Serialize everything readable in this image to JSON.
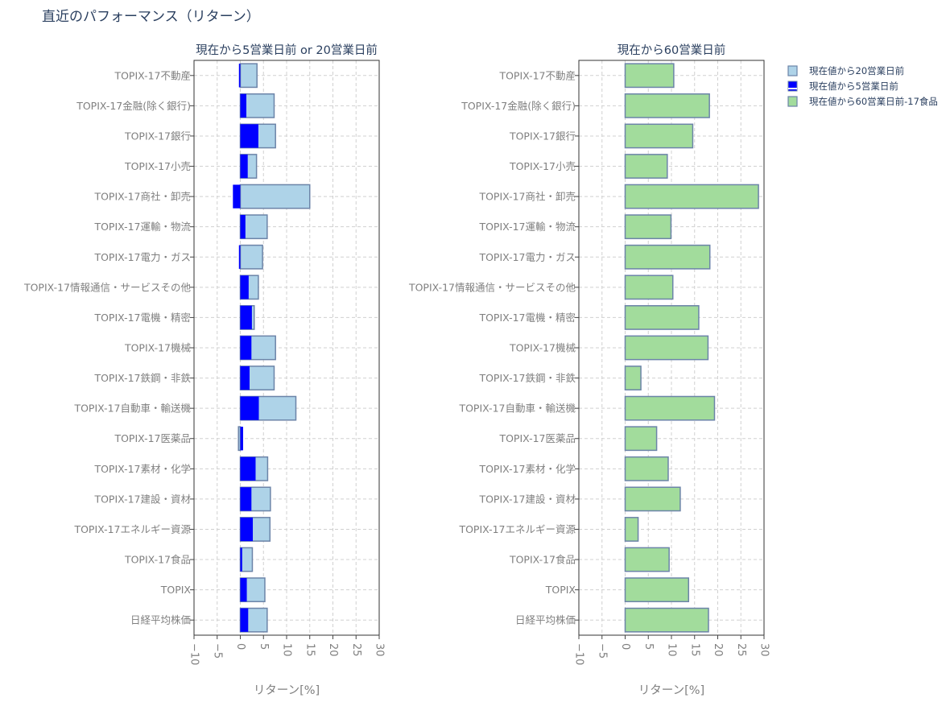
{
  "page": {
    "title": "直近のパフォーマンス（リターン）"
  },
  "colors": {
    "bar20": "#aed3e8",
    "bar5": "#0000ff",
    "bar60": "#a2dc9c",
    "barOutline": "#6c84a8",
    "grid": "#d0d0d0",
    "tick": "#7f7f7f",
    "title": "#2a3f5f"
  },
  "chart_data": [
    {
      "type": "bar",
      "orientation": "horizontal",
      "title": "現在から5営業日前 or 20営業日前",
      "xlabel": "リターン[%]",
      "xlim": [
        -10,
        30
      ],
      "xticks": [
        -10,
        -5,
        0,
        5,
        10,
        15,
        20,
        25,
        30
      ],
      "xtick_labels": [
        "−10",
        "−5",
        "0",
        "5",
        "10",
        "15",
        "20",
        "25",
        "30"
      ],
      "grid": true,
      "categories": [
        "TOPIX-17不動産",
        "TOPIX-17金融(除く銀行)",
        "TOPIX-17銀行",
        "TOPIX-17小売",
        "TOPIX-17商社・卸売",
        "TOPIX-17運輸・物流",
        "TOPIX-17電力・ガス",
        "TOPIX-17情報通信・サービスその他",
        "TOPIX-17電機・精密",
        "TOPIX-17機械",
        "TOPIX-17鉄鋼・非鉄",
        "TOPIX-17自動車・輸送機",
        "TOPIX-17医薬品",
        "TOPIX-17素材・化学",
        "TOPIX-17建設・資材",
        "TOPIX-17エネルギー資源",
        "TOPIX-17食品",
        "TOPIX",
        "日経平均株価"
      ],
      "series": [
        {
          "name": "現在値から20営業日前",
          "values": [
            3.6,
            7.3,
            7.6,
            3.5,
            15.0,
            5.8,
            4.8,
            3.9,
            3.0,
            7.6,
            7.3,
            12.0,
            -0.4,
            5.9,
            6.5,
            6.4,
            2.6,
            5.3,
            5.8
          ]
        },
        {
          "name": "現在値から5営業日前",
          "values": [
            -0.3,
            1.3,
            3.9,
            1.6,
            -1.6,
            1.1,
            -0.3,
            1.8,
            2.5,
            2.4,
            2.0,
            4.0,
            0.6,
            3.3,
            2.4,
            2.7,
            0.4,
            1.4,
            1.7
          ]
        }
      ]
    },
    {
      "type": "bar",
      "orientation": "horizontal",
      "title": "現在から60営業日前",
      "xlabel": "リターン[%]",
      "xlim": [
        -10,
        30
      ],
      "xticks": [
        -10,
        -5,
        0,
        5,
        10,
        15,
        20,
        25,
        30
      ],
      "xtick_labels": [
        "−10",
        "−5",
        "0",
        "5",
        "10",
        "15",
        "20",
        "25",
        "30"
      ],
      "grid": true,
      "categories": [
        "TOPIX-17不動産",
        "TOPIX-17金融(除く銀行)",
        "TOPIX-17銀行",
        "TOPIX-17小売",
        "TOPIX-17商社・卸売",
        "TOPIX-17運輸・物流",
        "TOPIX-17電力・ガス",
        "TOPIX-17情報通信・サービスその他",
        "TOPIX-17電機・精密",
        "TOPIX-17機械",
        "TOPIX-17鉄鋼・非鉄",
        "TOPIX-17自動車・輸送機",
        "TOPIX-17医薬品",
        "TOPIX-17素材・化学",
        "TOPIX-17建設・資材",
        "TOPIX-17エネルギー資源",
        "TOPIX-17食品",
        "TOPIX",
        "日経平均株価"
      ],
      "series": [
        {
          "name": "現在値から60営業日前-17食品",
          "values": [
            10.5,
            18.2,
            14.6,
            9.1,
            28.8,
            9.9,
            18.3,
            10.3,
            15.9,
            17.9,
            3.4,
            19.3,
            6.8,
            9.3,
            11.9,
            2.8,
            9.5,
            13.7,
            18.0
          ]
        }
      ]
    }
  ],
  "legend": {
    "placement": "top-right",
    "items": [
      {
        "label": "現在値から20営業日前",
        "color": "#aed3e8"
      },
      {
        "label": "現在値から5営業日前",
        "color": "#0000ff"
      },
      {
        "label": "現在値から60営業日前-17食品",
        "color": "#a2dc9c"
      }
    ]
  }
}
